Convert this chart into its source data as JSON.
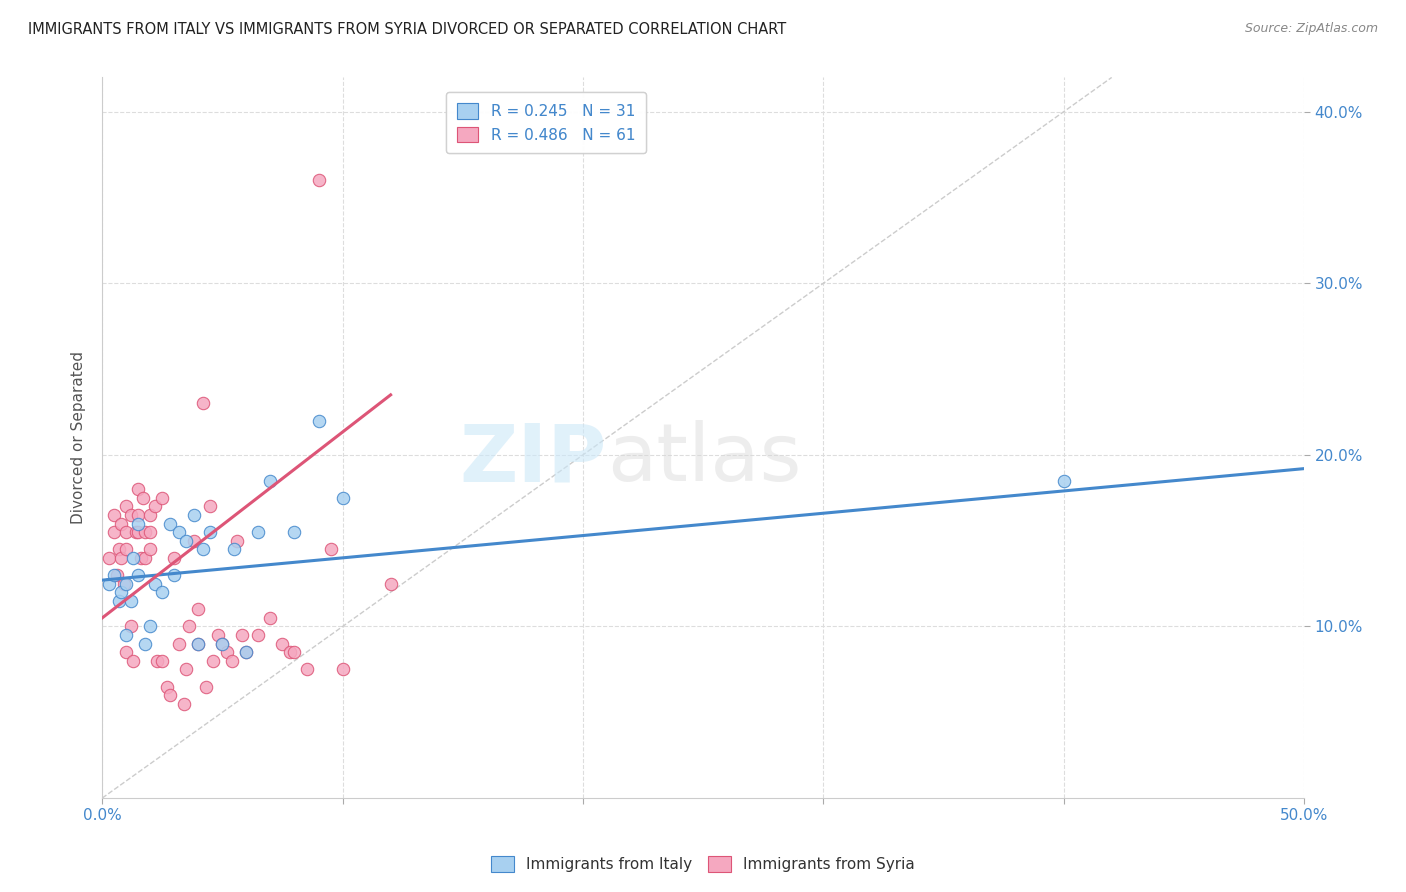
{
  "title": "IMMIGRANTS FROM ITALY VS IMMIGRANTS FROM SYRIA DIVORCED OR SEPARATED CORRELATION CHART",
  "source": "Source: ZipAtlas.com",
  "ylabel": "Divorced or Separated",
  "xlim": [
    0.0,
    0.5
  ],
  "ylim": [
    0.0,
    0.42
  ],
  "xticks": [
    0.0,
    0.1,
    0.2,
    0.3,
    0.4,
    0.5
  ],
  "yticks": [
    0.1,
    0.2,
    0.3,
    0.4
  ],
  "xtick_labels": [
    "0.0%",
    "",
    "",
    "",
    "",
    "50.0%"
  ],
  "ytick_labels_right": [
    "10.0%",
    "20.0%",
    "30.0%",
    "40.0%"
  ],
  "legend_R_italy": "R = 0.245",
  "legend_N_italy": "N = 31",
  "legend_R_syria": "R = 0.486",
  "legend_N_syria": "N = 61",
  "legend_label_italy": "Immigrants from Italy",
  "legend_label_syria": "Immigrants from Syria",
  "color_italy": "#a8d0f0",
  "color_syria": "#f5a8c0",
  "color_italy_line": "#4488cc",
  "color_syria_line": "#dd5577",
  "color_diagonal": "#cccccc",
  "watermark_zip": "ZIP",
  "watermark_atlas": "atlas",
  "italy_scatter_x": [
    0.003,
    0.005,
    0.007,
    0.008,
    0.01,
    0.01,
    0.012,
    0.013,
    0.015,
    0.015,
    0.018,
    0.02,
    0.022,
    0.025,
    0.028,
    0.03,
    0.032,
    0.035,
    0.038,
    0.04,
    0.042,
    0.045,
    0.05,
    0.055,
    0.06,
    0.065,
    0.07,
    0.08,
    0.09,
    0.1,
    0.4
  ],
  "italy_scatter_y": [
    0.125,
    0.13,
    0.115,
    0.12,
    0.125,
    0.095,
    0.115,
    0.14,
    0.13,
    0.16,
    0.09,
    0.1,
    0.125,
    0.12,
    0.16,
    0.13,
    0.155,
    0.15,
    0.165,
    0.09,
    0.145,
    0.155,
    0.09,
    0.145,
    0.085,
    0.155,
    0.185,
    0.155,
    0.22,
    0.175,
    0.185
  ],
  "syria_scatter_x": [
    0.003,
    0.005,
    0.005,
    0.006,
    0.007,
    0.008,
    0.008,
    0.009,
    0.01,
    0.01,
    0.01,
    0.01,
    0.012,
    0.012,
    0.013,
    0.014,
    0.015,
    0.015,
    0.015,
    0.016,
    0.017,
    0.018,
    0.018,
    0.02,
    0.02,
    0.02,
    0.022,
    0.023,
    0.025,
    0.025,
    0.027,
    0.028,
    0.03,
    0.032,
    0.034,
    0.035,
    0.036,
    0.038,
    0.04,
    0.04,
    0.042,
    0.043,
    0.045,
    0.046,
    0.048,
    0.05,
    0.052,
    0.054,
    0.056,
    0.058,
    0.06,
    0.065,
    0.07,
    0.075,
    0.078,
    0.08,
    0.085,
    0.09,
    0.095,
    0.1,
    0.12
  ],
  "syria_scatter_y": [
    0.14,
    0.155,
    0.165,
    0.13,
    0.145,
    0.16,
    0.14,
    0.125,
    0.155,
    0.145,
    0.17,
    0.085,
    0.165,
    0.1,
    0.08,
    0.155,
    0.18,
    0.165,
    0.155,
    0.14,
    0.175,
    0.155,
    0.14,
    0.165,
    0.155,
    0.145,
    0.17,
    0.08,
    0.175,
    0.08,
    0.065,
    0.06,
    0.14,
    0.09,
    0.055,
    0.075,
    0.1,
    0.15,
    0.09,
    0.11,
    0.23,
    0.065,
    0.17,
    0.08,
    0.095,
    0.09,
    0.085,
    0.08,
    0.15,
    0.095,
    0.085,
    0.095,
    0.105,
    0.09,
    0.085,
    0.085,
    0.075,
    0.36,
    0.145,
    0.075,
    0.125
  ],
  "italy_line_x": [
    0.0,
    0.5
  ],
  "italy_line_y": [
    0.127,
    0.192
  ],
  "syria_line_x": [
    0.0,
    0.12
  ],
  "syria_line_y": [
    0.105,
    0.235
  ],
  "diag_line_x": [
    0.0,
    0.42
  ],
  "diag_line_y": [
    0.0,
    0.42
  ]
}
